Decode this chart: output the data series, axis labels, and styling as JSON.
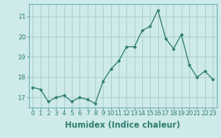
{
  "x": [
    0,
    1,
    2,
    3,
    4,
    5,
    6,
    7,
    8,
    9,
    10,
    11,
    12,
    13,
    14,
    15,
    16,
    17,
    18,
    19,
    20,
    21,
    22,
    23
  ],
  "y": [
    17.5,
    17.4,
    16.8,
    17.0,
    17.1,
    16.8,
    17.0,
    16.9,
    16.7,
    17.8,
    18.4,
    18.8,
    19.5,
    19.5,
    20.3,
    20.5,
    21.3,
    19.9,
    19.4,
    20.1,
    18.6,
    18.0,
    18.3,
    17.9
  ],
  "line_color": "#2d7d6e",
  "marker": "o",
  "marker_size": 2.5,
  "line_width": 1.0,
  "bg_color": "#ceeaea",
  "grid_color": "#aacece",
  "xlabel": "Humidex (Indice chaleur)",
  "ylim": [
    16.5,
    21.6
  ],
  "xlim": [
    -0.5,
    23.5
  ],
  "yticks": [
    17,
    18,
    19,
    20,
    21
  ],
  "xtick_labels": [
    "0",
    "1",
    "2",
    "3",
    "4",
    "5",
    "6",
    "7",
    "8",
    "9",
    "10",
    "11",
    "12",
    "13",
    "14",
    "15",
    "16",
    "17",
    "18",
    "19",
    "20",
    "21",
    "22",
    "23"
  ],
  "tick_fontsize": 6.5,
  "xlabel_fontsize": 8.5,
  "spine_color": "#6aacac",
  "tick_color": "#2d7d6e"
}
